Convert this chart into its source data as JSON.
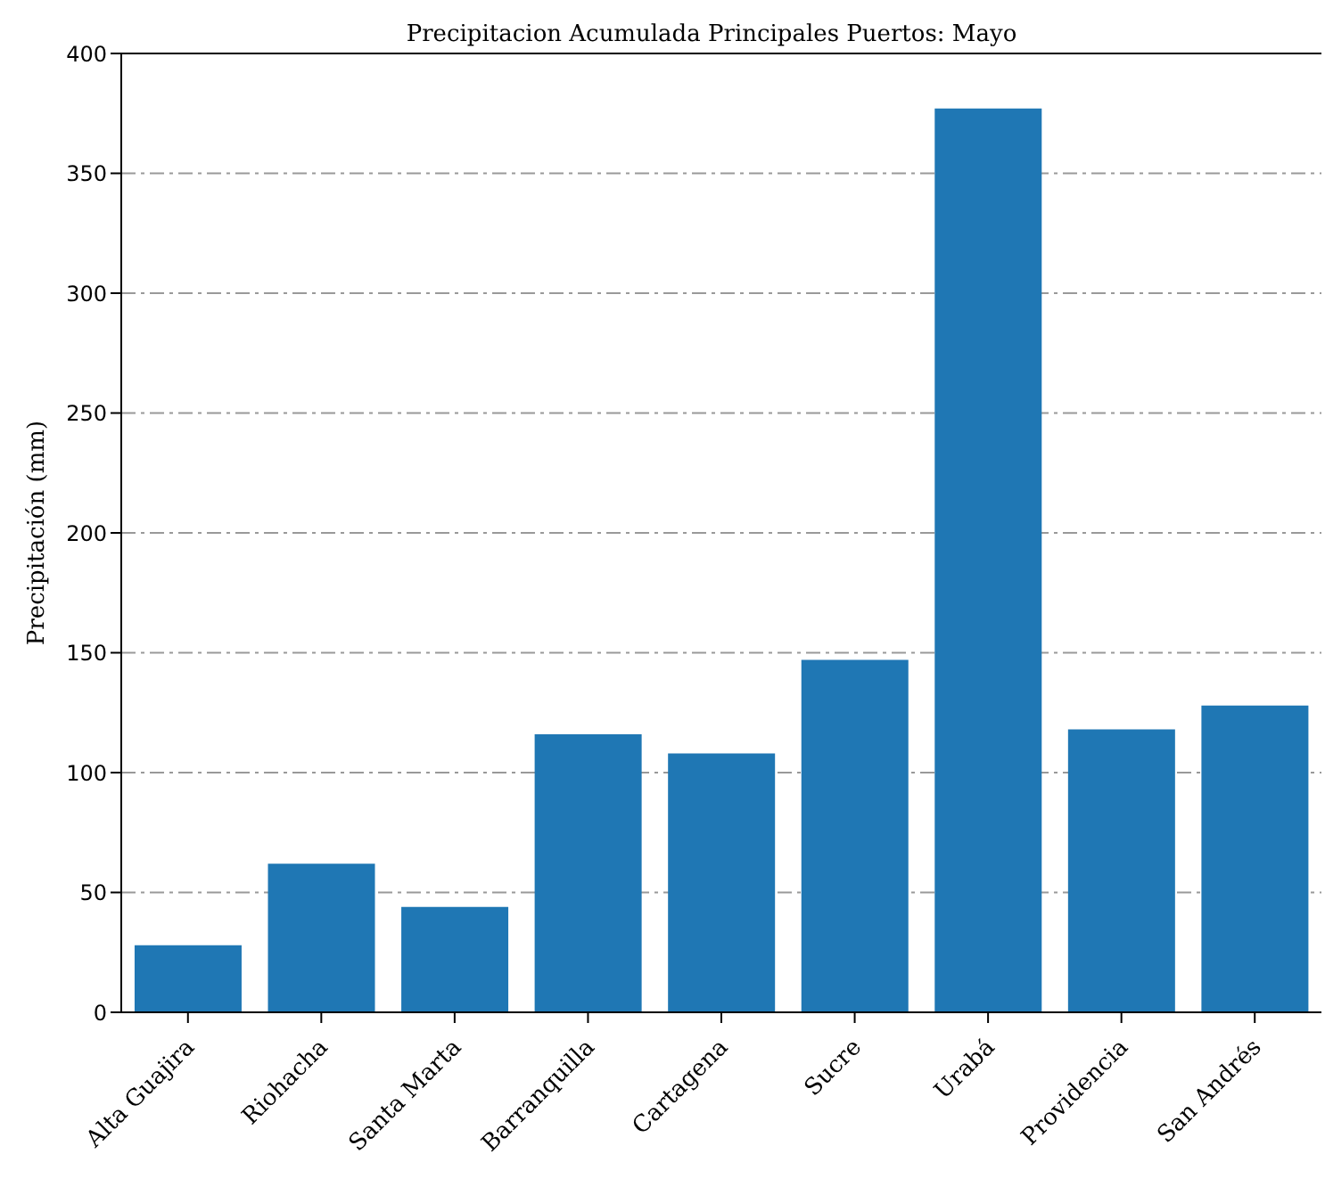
{
  "chart_data": {
    "type": "bar",
    "title": "Precipitacion Acumulada Principales Puertos: Mayo",
    "ylabel": "Precipitación (mm)",
    "categories": [
      "Alta Guajira",
      "Riohacha",
      "Santa Marta",
      "Barranquilla",
      "Cartagena",
      "Sucre",
      "Urabá",
      "Providencia",
      "San Andrés"
    ],
    "values": [
      28,
      62,
      44,
      116,
      108,
      147,
      377,
      118,
      128
    ],
    "color": "#1f77b4",
    "ylim": [
      0,
      400
    ],
    "yticks": [
      0,
      50,
      100,
      150,
      200,
      250,
      300,
      350,
      400
    ],
    "grid": "y",
    "line_style": "dashdot"
  }
}
